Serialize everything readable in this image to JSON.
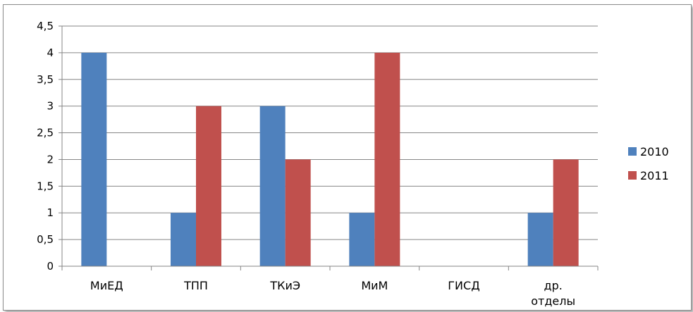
{
  "chart_data": {
    "type": "bar",
    "categories": [
      "МиЕД",
      "ТПП",
      "ТКиЭ",
      "МиМ",
      "ГИСД",
      "др. отделы"
    ],
    "category_lines": [
      [
        "МиЕД"
      ],
      [
        "ТПП"
      ],
      [
        "ТКиЭ"
      ],
      [
        "МиМ"
      ],
      [
        "ГИСД"
      ],
      [
        "др.",
        "отделы"
      ]
    ],
    "series": [
      {
        "name": "2010",
        "color": "#4F81BD",
        "values": [
          4,
          1,
          3,
          1,
          0,
          1
        ]
      },
      {
        "name": "2011",
        "color": "#C0504D",
        "values": [
          0,
          3,
          2,
          4,
          0,
          2
        ]
      }
    ],
    "y_ticks": [
      "0",
      "0,5",
      "1",
      "1,5",
      "2",
      "2,5",
      "3",
      "3,5",
      "4",
      "4,5"
    ],
    "ylim": [
      0,
      4.5
    ],
    "grid": true,
    "legend_position": "right",
    "title": "",
    "xlabel": "",
    "ylabel": ""
  }
}
